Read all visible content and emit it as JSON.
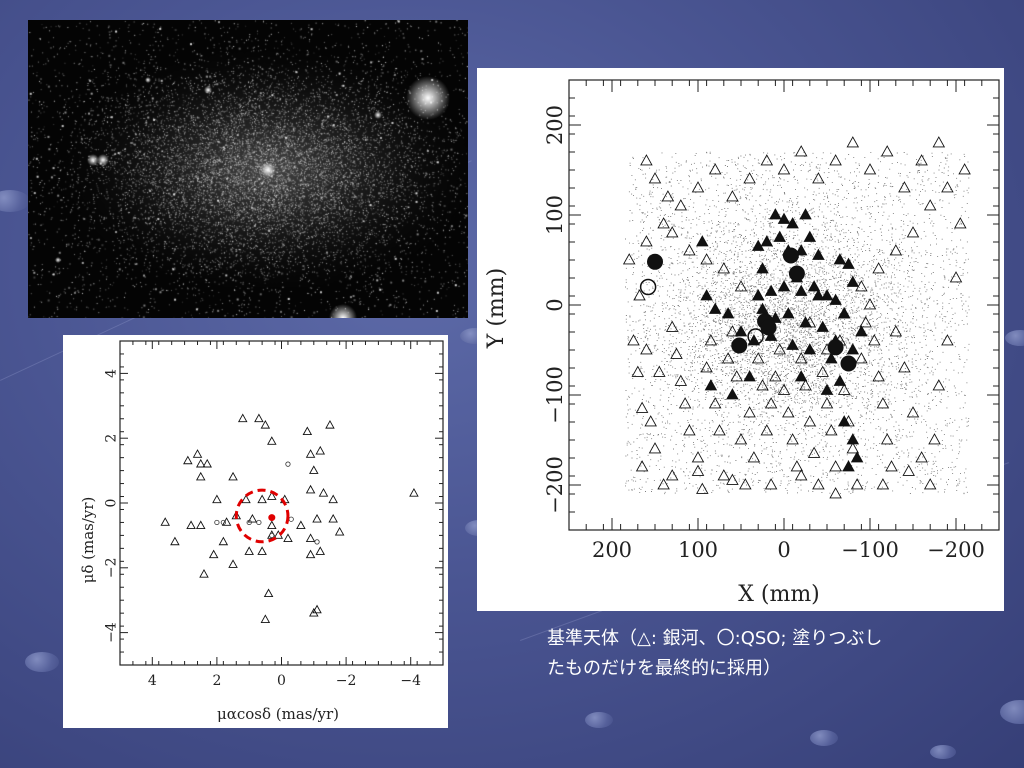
{
  "caption": {
    "line1": "基準天体（△: 銀河、〇:QSO; 塗りつぶし",
    "line2": "たものだけを最終的に採用）"
  },
  "chart_data": [
    {
      "type": "scatter",
      "title": "",
      "xlabel": "X (mm)",
      "ylabel": "Y (mm)",
      "xlim": [
        250,
        -250
      ],
      "ylim": [
        -250,
        250
      ],
      "x_ticks": [
        200,
        100,
        0,
        -100,
        -200
      ],
      "x_tick_labels": [
        "200",
        "100",
        "0",
        "−100",
        "−200"
      ],
      "y_ticks": [
        200,
        100,
        0,
        -100,
        -200
      ],
      "y_tick_labels": [
        "200",
        "100",
        "0",
        "−100",
        "−200"
      ],
      "background_field": "dense field of faint stars, approx. X ∈ [-215, 185], Y ∈ [-210, 170], concentrated around center (-5, -20)",
      "series": [
        {
          "marker": "open-triangle",
          "points": [
            [
              180,
              50
            ],
            [
              175,
              -40
            ],
            [
              170,
              -75
            ],
            [
              165,
              -115
            ],
            [
              168,
              10
            ],
            [
              160,
              -50
            ],
            [
              155,
              -130
            ],
            [
              150,
              -160
            ],
            [
              145,
              -75
            ],
            [
              140,
              -200
            ],
            [
              160,
              160
            ],
            [
              150,
              140
            ],
            [
              135,
              120
            ],
            [
              130,
              -25
            ],
            [
              125,
              -55
            ],
            [
              120,
              -85
            ],
            [
              115,
              -110
            ],
            [
              110,
              -140
            ],
            [
              100,
              -170
            ],
            [
              95,
              -205
            ],
            [
              90,
              -70
            ],
            [
              85,
              -40
            ],
            [
              80,
              -110
            ],
            [
              75,
              -140
            ],
            [
              70,
              -190
            ],
            [
              65,
              -60
            ],
            [
              60,
              -30
            ],
            [
              55,
              -80
            ],
            [
              50,
              -150
            ],
            [
              45,
              -200
            ],
            [
              40,
              -120
            ],
            [
              35,
              -170
            ],
            [
              30,
              -60
            ],
            [
              25,
              -90
            ],
            [
              20,
              -140
            ],
            [
              15,
              -110
            ],
            [
              10,
              -80
            ],
            [
              5,
              -50
            ],
            [
              0,
              -95
            ],
            [
              -5,
              -120
            ],
            [
              -10,
              -150
            ],
            [
              -15,
              -180
            ],
            [
              -20,
              -60
            ],
            [
              -25,
              -90
            ],
            [
              -30,
              -130
            ],
            [
              -35,
              -165
            ],
            [
              -40,
              -200
            ],
            [
              -45,
              -75
            ],
            [
              -50,
              -110
            ],
            [
              -55,
              -140
            ],
            [
              -60,
              -180
            ],
            [
              -65,
              -40
            ],
            [
              -70,
              -95
            ],
            [
              -75,
              -130
            ],
            [
              -80,
              -160
            ],
            [
              -85,
              -200
            ],
            [
              -90,
              -60
            ],
            [
              -95,
              -20
            ],
            [
              -100,
              0
            ],
            [
              -105,
              -40
            ],
            [
              -110,
              -80
            ],
            [
              -115,
              -110
            ],
            [
              -120,
              -150
            ],
            [
              -125,
              -180
            ],
            [
              -130,
              -30
            ],
            [
              -140,
              -70
            ],
            [
              -150,
              -120
            ],
            [
              -160,
              -170
            ],
            [
              -170,
              -200
            ],
            [
              -180,
              -90
            ],
            [
              -190,
              -40
            ],
            [
              -200,
              30
            ],
            [
              -205,
              90
            ],
            [
              -210,
              150
            ],
            [
              -180,
              180
            ],
            [
              -160,
              160
            ],
            [
              -140,
              130
            ],
            [
              -120,
              170
            ],
            [
              -100,
              150
            ],
            [
              -80,
              180
            ],
            [
              -60,
              160
            ],
            [
              -40,
              140
            ],
            [
              -20,
              170
            ],
            [
              0,
              150
            ],
            [
              20,
              160
            ],
            [
              40,
              140
            ],
            [
              60,
              120
            ],
            [
              80,
              150
            ],
            [
              100,
              130
            ],
            [
              120,
              110
            ],
            [
              140,
              90
            ],
            [
              160,
              70
            ],
            [
              130,
              80
            ],
            [
              110,
              60
            ],
            [
              90,
              50
            ],
            [
              70,
              40
            ],
            [
              50,
              20
            ],
            [
              30,
              10
            ],
            [
              -30,
              -20
            ],
            [
              -50,
              -50
            ],
            [
              -70,
              -10
            ],
            [
              -90,
              20
            ],
            [
              -110,
              40
            ],
            [
              -130,
              60
            ],
            [
              -150,
              80
            ],
            [
              -170,
              110
            ],
            [
              -190,
              130
            ],
            [
              -175,
              -150
            ],
            [
              -145,
              -185
            ],
            [
              -115,
              -200
            ],
            [
              -60,
              -210
            ],
            [
              -20,
              -190
            ],
            [
              15,
              -200
            ],
            [
              60,
              -195
            ],
            [
              100,
              -185
            ],
            [
              130,
              -190
            ],
            [
              165,
              -180
            ]
          ]
        },
        {
          "marker": "filled-triangle",
          "points": [
            [
              10,
              100
            ],
            [
              5,
              75
            ],
            [
              0,
              95
            ],
            [
              -10,
              90
            ],
            [
              -25,
              100
            ],
            [
              -30,
              75
            ],
            [
              -20,
              60
            ],
            [
              -40,
              55
            ],
            [
              -65,
              50
            ],
            [
              -75,
              45
            ],
            [
              20,
              70
            ],
            [
              30,
              65
            ],
            [
              25,
              40
            ],
            [
              -5,
              60
            ],
            [
              -15,
              30
            ],
            [
              -35,
              20
            ],
            [
              -50,
              10
            ],
            [
              -60,
              5
            ],
            [
              -80,
              25
            ],
            [
              -70,
              -10
            ],
            [
              -40,
              10
            ],
            [
              -20,
              15
            ],
            [
              0,
              20
            ],
            [
              15,
              15
            ],
            [
              30,
              10
            ],
            [
              25,
              -5
            ],
            [
              10,
              -15
            ],
            [
              -5,
              -10
            ],
            [
              -25,
              -20
            ],
            [
              -45,
              -25
            ],
            [
              -60,
              -40
            ],
            [
              -80,
              -50
            ],
            [
              -55,
              -60
            ],
            [
              -30,
              -50
            ],
            [
              -10,
              -45
            ],
            [
              15,
              -35
            ],
            [
              35,
              -40
            ],
            [
              50,
              -30
            ],
            [
              65,
              -10
            ],
            [
              80,
              -5
            ],
            [
              90,
              10
            ],
            [
              95,
              70
            ],
            [
              85,
              -90
            ],
            [
              60,
              -100
            ],
            [
              40,
              -80
            ],
            [
              -20,
              -80
            ],
            [
              -50,
              -95
            ],
            [
              -70,
              -130
            ],
            [
              -80,
              -150
            ],
            [
              -85,
              -170
            ],
            [
              -75,
              -180
            ],
            [
              -65,
              -85
            ],
            [
              -90,
              -30
            ]
          ]
        },
        {
          "marker": "filled-circle",
          "points": [
            [
              150,
              48
            ],
            [
              52,
              -45
            ],
            [
              22,
              -18
            ],
            [
              18,
              -25
            ],
            [
              -8,
              55
            ],
            [
              -15,
              35
            ],
            [
              -60,
              -47
            ],
            [
              -75,
              -65
            ]
          ]
        },
        {
          "marker": "open-circle",
          "points": [
            [
              158,
              20
            ],
            [
              33,
              -35
            ]
          ]
        }
      ]
    },
    {
      "type": "scatter",
      "title": "",
      "xlabel": "μαcosδ (mas/yr)",
      "ylabel": "μδ (mas/yr)",
      "xlim": [
        5,
        -5
      ],
      "ylim": [
        -5,
        5
      ],
      "x_ticks": [
        4,
        2,
        0,
        -2,
        -4
      ],
      "x_tick_labels": [
        "4",
        "2",
        "0",
        "−2",
        "−4"
      ],
      "y_ticks": [
        4,
        2,
        0,
        -2,
        -4
      ],
      "y_tick_labels": [
        "4",
        "2",
        "0",
        "−2",
        "−4"
      ],
      "series": [
        {
          "marker": "open-triangle",
          "points": [
            [
              1.2,
              2.6
            ],
            [
              0.7,
              2.6
            ],
            [
              0.5,
              2.4
            ],
            [
              -0.8,
              2.2
            ],
            [
              -1.5,
              2.4
            ],
            [
              -1.2,
              1.6
            ],
            [
              -0.9,
              1.5
            ],
            [
              0.3,
              1.9
            ],
            [
              -1.0,
              1.0
            ],
            [
              2.6,
              1.5
            ],
            [
              2.9,
              1.3
            ],
            [
              2.5,
              1.2
            ],
            [
              2.3,
              1.2
            ],
            [
              2.5,
              0.8
            ],
            [
              1.5,
              0.8
            ],
            [
              2.0,
              0.1
            ],
            [
              1.1,
              0.1
            ],
            [
              0.6,
              0.1
            ],
            [
              0.3,
              0.2
            ],
            [
              -0.1,
              0.1
            ],
            [
              -0.9,
              0.4
            ],
            [
              -1.3,
              0.3
            ],
            [
              -1.6,
              0.1
            ],
            [
              -4.1,
              0.3
            ],
            [
              3.6,
              -0.6
            ],
            [
              3.3,
              -1.2
            ],
            [
              2.8,
              -0.7
            ],
            [
              2.5,
              -0.7
            ],
            [
              1.7,
              -0.6
            ],
            [
              1.4,
              -0.4
            ],
            [
              0.9,
              -0.5
            ],
            [
              0.3,
              -0.7
            ],
            [
              0.1,
              -1.0
            ],
            [
              -0.2,
              -1.1
            ],
            [
              -0.6,
              -0.7
            ],
            [
              -1.1,
              -0.5
            ],
            [
              -1.6,
              -0.5
            ],
            [
              -1.8,
              -0.9
            ],
            [
              -1.2,
              -1.5
            ],
            [
              -0.9,
              -1.1
            ],
            [
              0.3,
              -1.0
            ],
            [
              0.6,
              -1.5
            ],
            [
              1.0,
              -1.5
            ],
            [
              1.5,
              -1.9
            ],
            [
              1.8,
              -1.2
            ],
            [
              2.1,
              -1.6
            ],
            [
              2.4,
              -2.2
            ],
            [
              -0.9,
              -1.6
            ],
            [
              0.4,
              -2.8
            ],
            [
              0.5,
              -3.6
            ],
            [
              -1.1,
              -3.3
            ],
            [
              -1.0,
              -3.4
            ]
          ]
        },
        {
          "marker": "open-circle",
          "points": [
            [
              -0.2,
              1.2
            ],
            [
              1.0,
              -0.6
            ],
            [
              2.0,
              -0.6
            ],
            [
              1.8,
              -0.6
            ],
            [
              0.7,
              -0.6
            ],
            [
              0.3,
              -1.0
            ],
            [
              -1.1,
              -1.2
            ],
            [
              -0.3,
              -0.5
            ]
          ]
        },
        {
          "marker": "filled-circle-red",
          "points": [
            [
              0.3,
              -0.45
            ]
          ]
        },
        {
          "marker": "dashed-circle-red",
          "points": [
            [
              0.6,
              -0.4
            ]
          ],
          "radius": 0.8
        }
      ]
    }
  ]
}
